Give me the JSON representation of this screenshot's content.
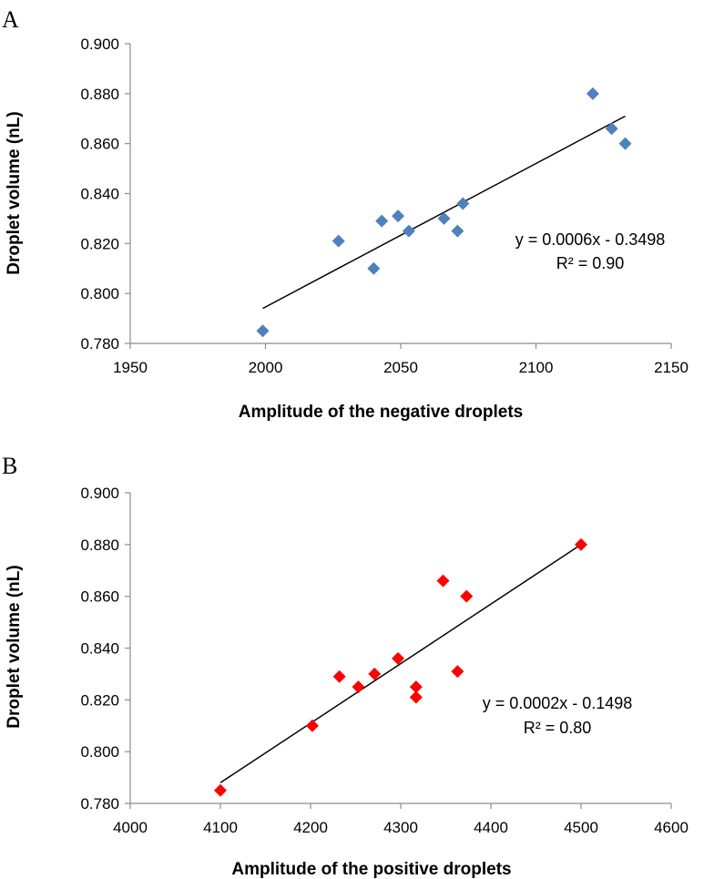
{
  "chart_data": [
    {
      "type": "scatter",
      "panel_label": "A",
      "title": "",
      "xlabel": "Amplitude of the negative droplets",
      "ylabel": "Droplet volume (nL)",
      "xlim": [
        1950,
        2150
      ],
      "ylim": [
        0.78,
        0.9
      ],
      "xticks": [
        1950,
        2000,
        2050,
        2100,
        2150
      ],
      "yticks": [
        "0.780",
        "0.800",
        "0.820",
        "0.840",
        "0.860",
        "0.880",
        "0.900"
      ],
      "marker_color": "#4f81bd",
      "grid": false,
      "series": [
        {
          "name": "negative droplets",
          "points": [
            {
              "x": 1999,
              "y": 0.785
            },
            {
              "x": 2027,
              "y": 0.821
            },
            {
              "x": 2040,
              "y": 0.81
            },
            {
              "x": 2043,
              "y": 0.829
            },
            {
              "x": 2049,
              "y": 0.831
            },
            {
              "x": 2053,
              "y": 0.825
            },
            {
              "x": 2066,
              "y": 0.83
            },
            {
              "x": 2071,
              "y": 0.825
            },
            {
              "x": 2073,
              "y": 0.836
            },
            {
              "x": 2121,
              "y": 0.88
            },
            {
              "x": 2128,
              "y": 0.866
            },
            {
              "x": 2133,
              "y": 0.86
            }
          ]
        }
      ],
      "trendline": {
        "x_start": 1999,
        "y_start": 0.794,
        "x_end": 2133,
        "y_end": 0.871
      },
      "equation": "y = 0.0006x - 0.3498",
      "r2": "R² = 0.90"
    },
    {
      "type": "scatter",
      "panel_label": "B",
      "title": "",
      "xlabel": "Amplitude of the positive droplets",
      "ylabel": "Droplet volume (nL)",
      "xlim": [
        4000,
        4600
      ],
      "ylim": [
        0.78,
        0.9
      ],
      "xticks": [
        4000,
        4100,
        4200,
        4300,
        4400,
        4500,
        4600
      ],
      "yticks": [
        "0.780",
        "0.800",
        "0.820",
        "0.840",
        "0.860",
        "0.880",
        "0.900"
      ],
      "marker_color": "#ff0000",
      "grid": false,
      "series": [
        {
          "name": "positive droplets",
          "points": [
            {
              "x": 4100,
              "y": 0.785
            },
            {
              "x": 4202,
              "y": 0.81
            },
            {
              "x": 4232,
              "y": 0.829
            },
            {
              "x": 4253,
              "y": 0.825
            },
            {
              "x": 4271,
              "y": 0.83
            },
            {
              "x": 4297,
              "y": 0.836
            },
            {
              "x": 4317,
              "y": 0.825
            },
            {
              "x": 4317,
              "y": 0.821
            },
            {
              "x": 4347,
              "y": 0.866
            },
            {
              "x": 4363,
              "y": 0.831
            },
            {
              "x": 4373,
              "y": 0.86
            },
            {
              "x": 4500,
              "y": 0.88
            }
          ]
        }
      ],
      "trendline": {
        "x_start": 4100,
        "y_start": 0.788,
        "x_end": 4500,
        "y_end": 0.88
      },
      "equation": "y = 0.0002x - 0.1498",
      "r2": "R² = 0.80"
    }
  ]
}
